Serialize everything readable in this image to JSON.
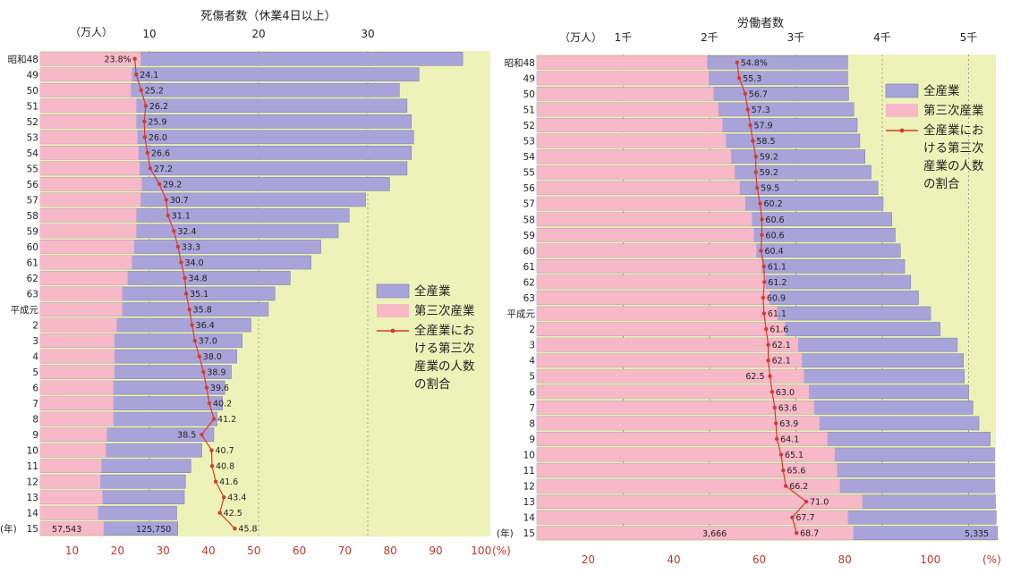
{
  "colors": {
    "panel_bg": "#edf3b8",
    "total_bar": "#a8a4d9",
    "tertiary_bar": "#f7b8c8",
    "share_line": "#d63b2b",
    "bar_edge": "#7f7aa8"
  },
  "chart_data": [
    {
      "type": "bar",
      "orientation": "horizontal",
      "title": "死傷者数（休業4日以上）",
      "count_unit": "（万人）",
      "count_ticks": [
        "10",
        "20",
        "30"
      ],
      "count_tick_values": [
        10,
        20,
        30
      ],
      "pct_ticks": [
        "10",
        "20",
        "30",
        "40",
        "50",
        "60",
        "70",
        "80",
        "90",
        "100"
      ],
      "pct_unit": "(%)",
      "pct_axis_range": [
        3,
        110
      ],
      "year_unit": "(年)",
      "year_ticks": [
        "昭和48",
        "49",
        "50",
        "51",
        "52",
        "53",
        "54",
        "55",
        "56",
        "57",
        "58",
        "59",
        "60",
        "61",
        "62",
        "63",
        "平成元",
        "2",
        "3",
        "4",
        "5",
        "6",
        "7",
        "8",
        "9",
        "10",
        "11",
        "12",
        "13",
        "14",
        "15"
      ],
      "legend": {
        "total": "全産業",
        "tertiary": "第三次産業",
        "share_lines": [
          "全産業にお",
          "ける第三次",
          "産業の人数",
          "の割合"
        ]
      },
      "series": [
        {
          "name": "全産業",
          "values": [
            38.7,
            34.7,
            32.9,
            33.6,
            34.0,
            34.2,
            34.0,
            33.6,
            32.0,
            29.8,
            28.3,
            27.3,
            25.7,
            24.8,
            22.9,
            21.5,
            20.9,
            19.3,
            18.5,
            18.0,
            17.5,
            16.9,
            16.7,
            16.2,
            15.9,
            14.8,
            13.8,
            13.3,
            13.2,
            12.5,
            12.6
          ]
        },
        {
          "name": "第三次産業",
          "values": [
            9.2,
            8.4,
            8.3,
            8.8,
            8.8,
            8.9,
            9.0,
            9.1,
            9.3,
            9.2,
            8.8,
            8.8,
            8.6,
            8.4,
            8.0,
            7.5,
            7.5,
            7.0,
            6.8,
            6.8,
            6.8,
            6.7,
            6.7,
            6.7,
            6.1,
            6.0,
            5.6,
            5.5,
            5.7,
            5.3,
            5.8
          ]
        }
      ],
      "share_pct": [
        23.8,
        24.1,
        25.2,
        26.2,
        25.9,
        26.0,
        26.6,
        27.2,
        29.2,
        30.7,
        31.1,
        32.4,
        33.3,
        34.0,
        34.8,
        35.1,
        35.8,
        36.4,
        37.0,
        38.0,
        38.9,
        39.6,
        40.2,
        41.2,
        38.5,
        40.7,
        40.8,
        41.6,
        43.4,
        42.5,
        45.8
      ],
      "share_labels": [
        "23.8%",
        "24.1",
        "25.2",
        "26.2",
        "25.9",
        "26.0",
        "26.6",
        "27.2",
        "29.2",
        "30.7",
        "31.1",
        "32.4",
        "33.3",
        "34.0",
        "34.8",
        "35.1",
        "35.8",
        "36.4",
        "37.0",
        "38.0",
        "38.9",
        "39.6",
        "40.2",
        "41.2",
        "38.5",
        "40.7",
        "40.8",
        "41.6",
        "43.4",
        "42.5",
        "45.8"
      ],
      "last_values": {
        "tertiary": "57,543",
        "total": "125,750"
      }
    },
    {
      "type": "bar",
      "orientation": "horizontal",
      "title": "労働者数",
      "count_unit": "（万人）",
      "count_ticks": [
        "1千",
        "2千",
        "3千",
        "4千",
        "5千"
      ],
      "count_tick_values": [
        1000,
        2000,
        3000,
        4000,
        5000
      ],
      "pct_ticks": [
        "20",
        "40",
        "60",
        "80",
        "100"
      ],
      "pct_unit": "(%)",
      "pct_axis_range": [
        8,
        111
      ],
      "year_unit": "(年)",
      "year_ticks": [
        "昭和48",
        "49",
        "50",
        "51",
        "52",
        "53",
        "54",
        "55",
        "56",
        "57",
        "58",
        "59",
        "60",
        "61",
        "62",
        "63",
        "平成元",
        "2",
        "3",
        "4",
        "5",
        "6",
        "7",
        "8",
        "9",
        "10",
        "11",
        "12",
        "13",
        "14",
        "15"
      ],
      "legend": {
        "total": "全産業",
        "tertiary": "第三次産業",
        "share_lines": [
          "全産業にお",
          "ける第三次",
          "産業の人数",
          "の割合"
        ]
      },
      "series": [
        {
          "name": "全産業",
          "values": [
            3600,
            3600,
            3610,
            3670,
            3710,
            3740,
            3800,
            3870,
            3950,
            4010,
            4110,
            4150,
            4210,
            4260,
            4330,
            4420,
            4560,
            4670,
            4870,
            4940,
            4950,
            5000,
            5050,
            5120,
            5250,
            5300,
            5300,
            5300,
            5310,
            5320,
            5335
          ]
        },
        {
          "name": "第三次産業",
          "values": [
            1973,
            1991,
            2047,
            2103,
            2148,
            2188,
            2250,
            2291,
            2350,
            2414,
            2491,
            2515,
            2543,
            2603,
            2650,
            2692,
            2786,
            2877,
            3025,
            3068,
            3094,
            3150,
            3212,
            3272,
            3365,
            3450,
            3477,
            3509,
            3770,
            3601,
            3666
          ]
        }
      ],
      "share_pct": [
        54.8,
        55.3,
        56.7,
        57.3,
        57.9,
        58.5,
        59.2,
        59.2,
        59.5,
        60.2,
        60.6,
        60.6,
        60.4,
        61.1,
        61.2,
        60.9,
        61.1,
        61.6,
        62.1,
        62.1,
        62.5,
        63.0,
        63.6,
        63.9,
        64.1,
        65.1,
        65.6,
        66.2,
        71.0,
        67.7,
        68.7
      ],
      "share_labels": [
        "54.8%",
        "55.3",
        "56.7",
        "57.3",
        "57.9",
        "58.5",
        "59.2",
        "59.2",
        "59.5",
        "60.2",
        "60.6",
        "60.6",
        "60.4",
        "61.1",
        "61.2",
        "60.9",
        "61.1",
        "61.6",
        "62.1",
        "62.1",
        "62.5",
        "63.0",
        "63.6",
        "63.9",
        "64.1",
        "65.1",
        "65.6",
        "66.2",
        "71.0",
        "67.7",
        "68.7"
      ],
      "last_values": {
        "tertiary": "3,666",
        "total": "5,335"
      }
    }
  ]
}
